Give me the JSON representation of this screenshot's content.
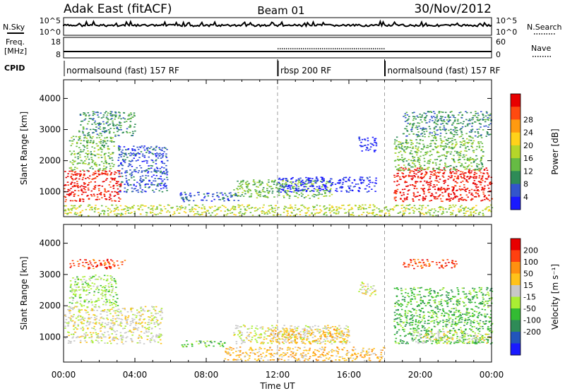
{
  "header": {
    "radar": "Adak East (fitACF)",
    "beam": "Beam 01",
    "date": "30/Nov/2012"
  },
  "side_labels": {
    "nsky": "N.Sky",
    "freq_line1": "Freq.",
    "freq_line2": "[MHz]",
    "cpid": "CPID",
    "nsearch": "N.Search",
    "nave": "Nave"
  },
  "noise_axis": {
    "ticks": [
      "10^5",
      "10^0"
    ]
  },
  "freq_axis": {
    "left_ticks": [
      "18",
      "8"
    ],
    "right_ticks": [
      "60",
      "0"
    ]
  },
  "cpid_segments": [
    {
      "label": "normalsound (fast) 157 RF",
      "start_hour": 0,
      "end_hour": 12
    },
    {
      "label": "rbsp 200 RF",
      "start_hour": 12,
      "end_hour": 18
    },
    {
      "label": "normalsound (fast) 157 RF",
      "start_hour": 18,
      "end_hour": 24
    }
  ],
  "chart_data": [
    {
      "type": "heatmap",
      "panel": "power",
      "ylabel": "Slant Range [km]",
      "ylim": [
        200,
        4600
      ],
      "yticks": [
        "1000",
        "2000",
        "3000",
        "4000"
      ],
      "xlim": [
        0,
        24
      ],
      "colorbar": {
        "label": "Power [dB]",
        "ticks": [
          "4",
          "8",
          "12",
          "16",
          "20",
          "24",
          "28"
        ],
        "colors": [
          "#1a1aff",
          "#3355cc",
          "#2e8b57",
          "#66bb44",
          "#b5d62a",
          "#ffd21a",
          "#ff9a10",
          "#ff4a10",
          "#e80000"
        ]
      },
      "regions": [
        {
          "t0": 0.0,
          "t1": 3.2,
          "r0": 700,
          "r1": 1700,
          "level": 8
        },
        {
          "t0": 0.3,
          "t1": 2.8,
          "r0": 1700,
          "r1": 2800,
          "level": 3
        },
        {
          "t0": 0.8,
          "t1": 4.0,
          "r0": 2800,
          "r1": 3600,
          "level": 2
        },
        {
          "t0": 3.0,
          "t1": 5.8,
          "r0": 1000,
          "r1": 2500,
          "level": 1
        },
        {
          "t0": 6.5,
          "t1": 9.8,
          "r0": 700,
          "r1": 1000,
          "level": 1
        },
        {
          "t0": 9.5,
          "t1": 15.0,
          "r0": 800,
          "r1": 1400,
          "level": 3
        },
        {
          "t0": 12.0,
          "t1": 17.5,
          "r0": 1000,
          "r1": 1500,
          "level": 0
        },
        {
          "t0": 16.5,
          "t1": 17.5,
          "r0": 2300,
          "r1": 2800,
          "level": 0
        },
        {
          "t0": 18.5,
          "t1": 24.0,
          "r0": 700,
          "r1": 1800,
          "level": 8
        },
        {
          "t0": 18.5,
          "t1": 23.5,
          "r0": 1700,
          "r1": 2800,
          "level": 3
        },
        {
          "t0": 19.0,
          "t1": 24.0,
          "r0": 2800,
          "r1": 3600,
          "level": 2
        },
        {
          "t0": 0.0,
          "t1": 24.0,
          "r0": 250,
          "r1": 600,
          "level": 4
        }
      ]
    },
    {
      "type": "heatmap",
      "panel": "velocity",
      "ylabel": "Slant Range [km]",
      "ylim": [
        200,
        4600
      ],
      "yticks": [
        "1000",
        "2000",
        "3000",
        "4000"
      ],
      "xlim": [
        0,
        24
      ],
      "xticks": [
        "00:00",
        "04:00",
        "08:00",
        "12:00",
        "16:00",
        "20:00",
        "00:00"
      ],
      "xlabel": "Time UT",
      "colorbar": {
        "label": "Velocity [m s⁻¹]",
        "ticks": [
          "200",
          "100",
          "50",
          "15",
          "-15",
          "-50",
          "-100",
          "-200"
        ],
        "colors": [
          "#1a1aff",
          "#2255bb",
          "#2e8b57",
          "#33bb33",
          "#aaee33",
          "#c8c8c8",
          "#ffc21a",
          "#ff9010",
          "#ff4010",
          "#e80000"
        ]
      },
      "regions": [
        {
          "t0": 0.0,
          "t1": 5.5,
          "r0": 800,
          "r1": 2000,
          "level": 5
        },
        {
          "t0": 0.3,
          "t1": 3.5,
          "r0": 3200,
          "r1": 3500,
          "level": 8
        },
        {
          "t0": 0.3,
          "t1": 3.0,
          "r0": 2000,
          "r1": 3000,
          "level": 4
        },
        {
          "t0": 6.5,
          "t1": 9.0,
          "r0": 700,
          "r1": 900,
          "level": 3
        },
        {
          "t0": 9.5,
          "t1": 16.0,
          "r0": 800,
          "r1": 1400,
          "level": 5
        },
        {
          "t0": 11.5,
          "t1": 16.0,
          "r0": 800,
          "r1": 1300,
          "level": 6
        },
        {
          "t0": 9.0,
          "t1": 18.0,
          "r0": 250,
          "r1": 700,
          "level": 6
        },
        {
          "t0": 18.5,
          "t1": 24.0,
          "r0": 800,
          "r1": 2600,
          "level": 3
        },
        {
          "t0": 19.5,
          "t1": 24.0,
          "r0": 800,
          "r1": 1200,
          "level": 5
        },
        {
          "t0": 19.0,
          "t1": 22.0,
          "r0": 3200,
          "r1": 3500,
          "level": 8
        },
        {
          "t0": 16.5,
          "t1": 17.5,
          "r0": 2300,
          "r1": 2800,
          "level": 5
        }
      ]
    }
  ]
}
